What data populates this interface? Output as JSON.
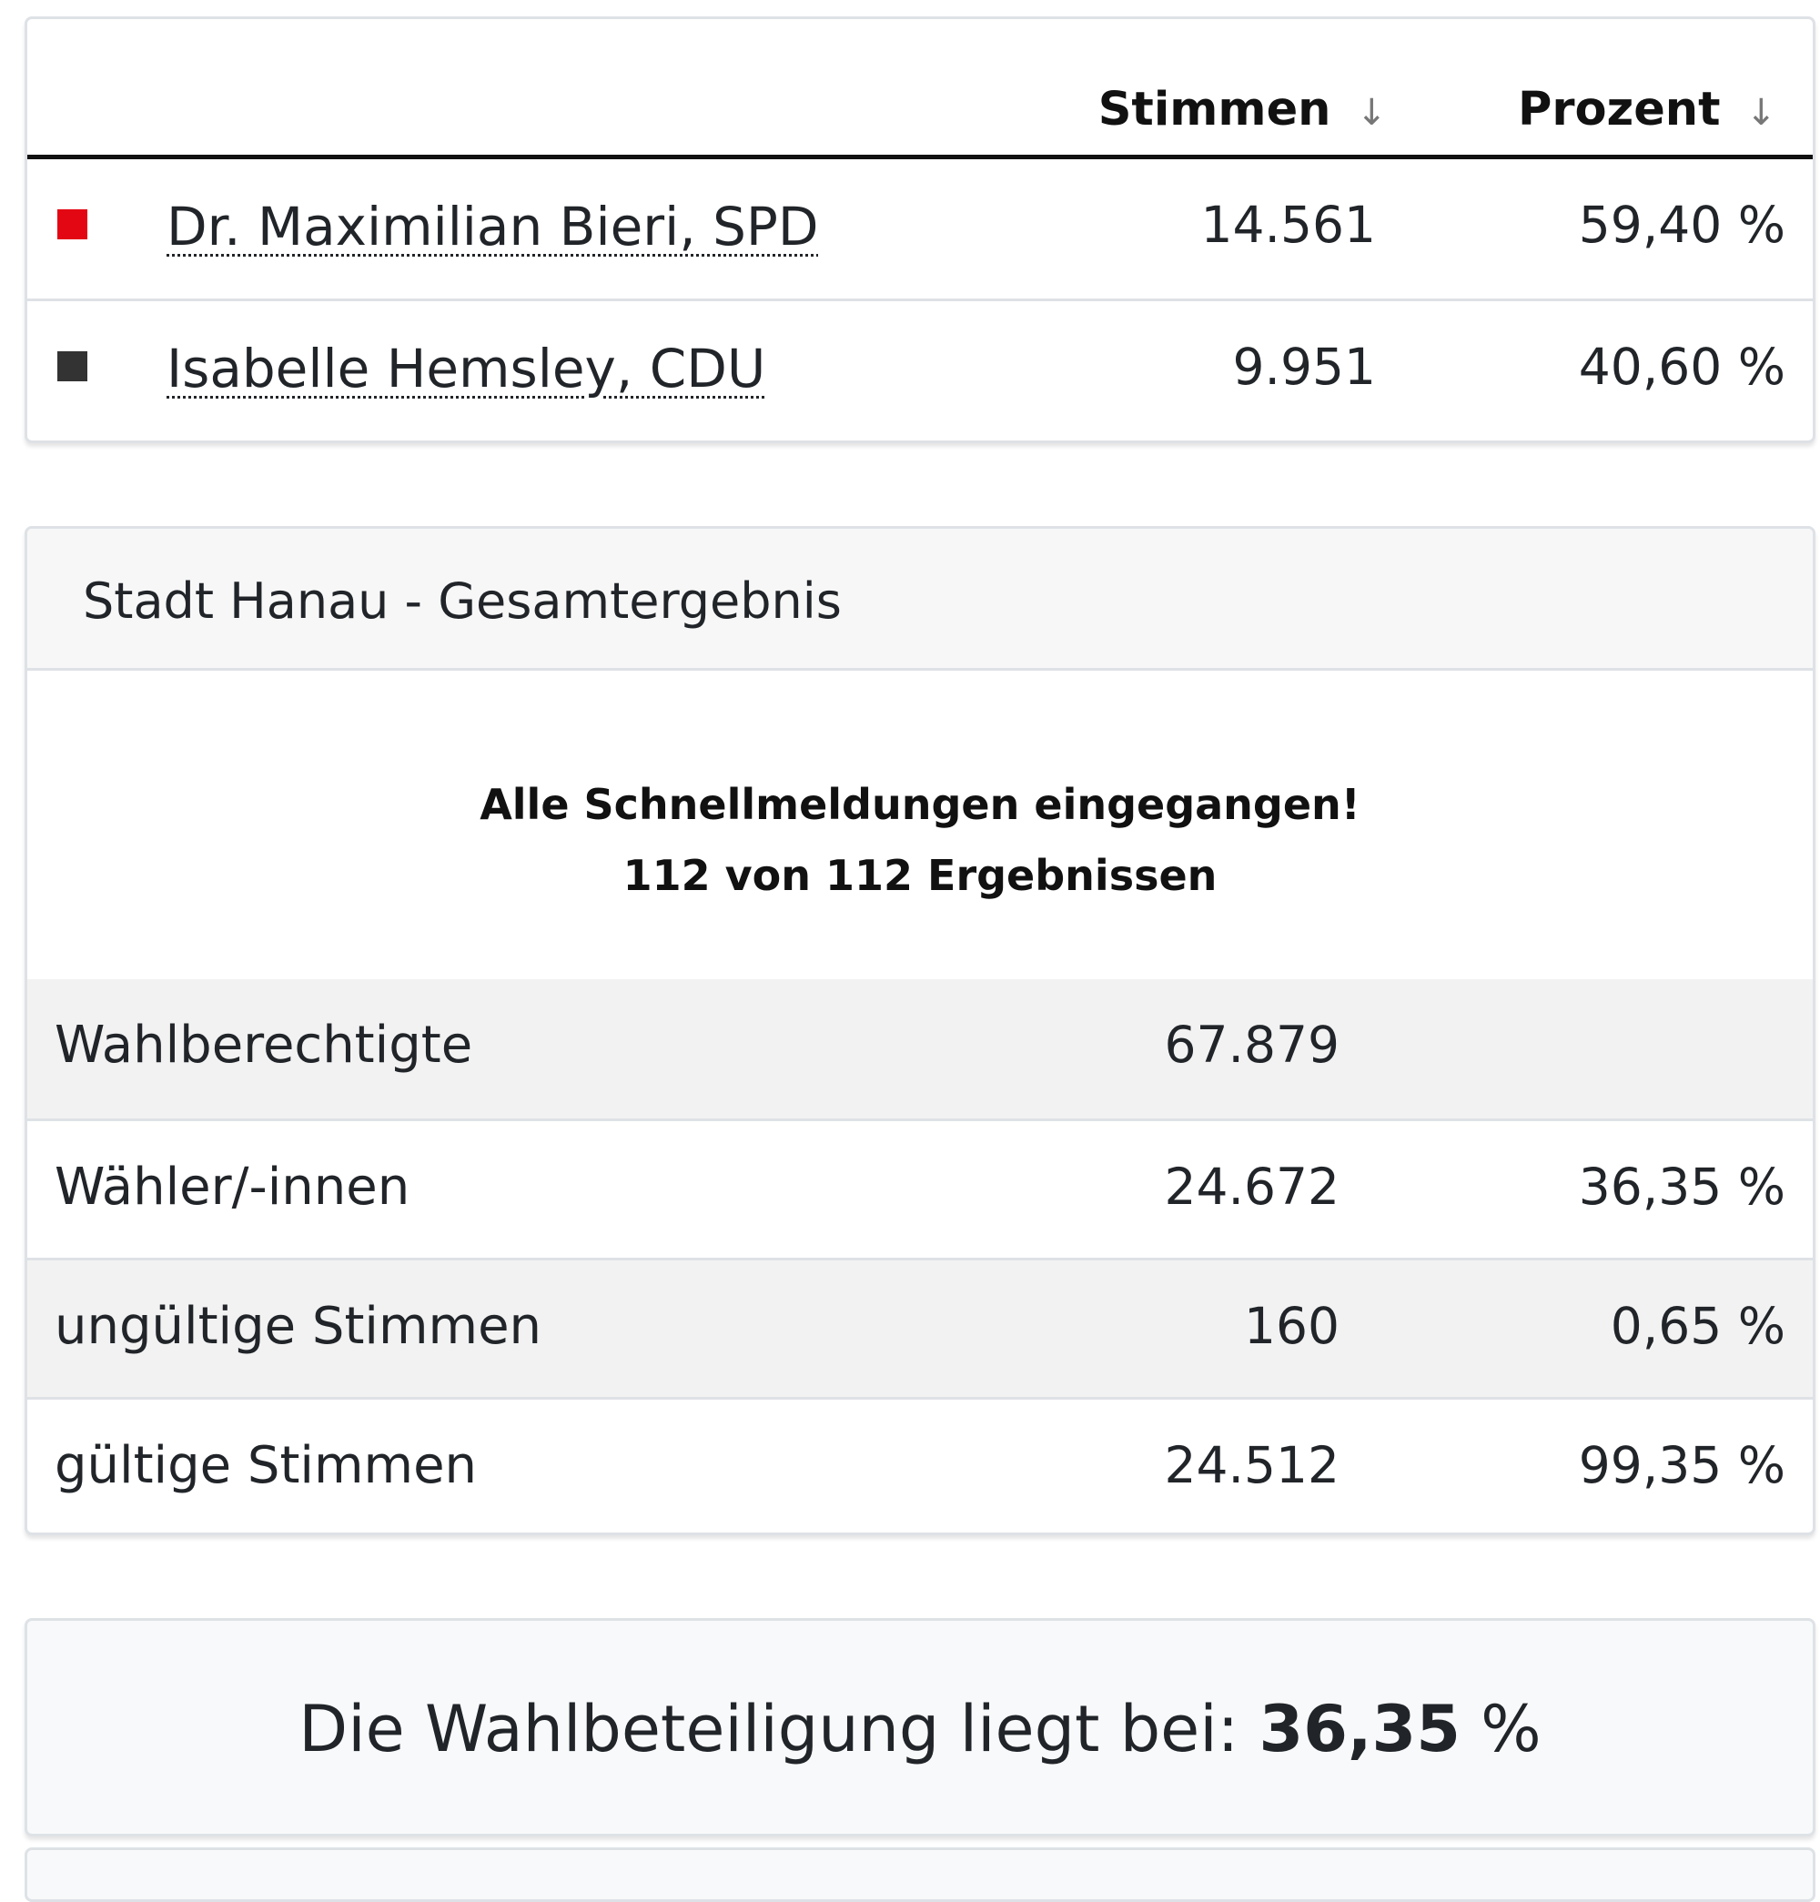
{
  "results": {
    "headers": {
      "votes": "Stimmen",
      "percent": "Prozent",
      "sort_glyph": "↓"
    },
    "candidates": [
      {
        "name": "Dr. Maximilian Bieri, SPD",
        "votes": "14.561",
        "percent": "59,40 %",
        "color": "#e30613"
      },
      {
        "name": "Isabelle Hemsley, CDU",
        "votes": "9.951",
        "percent": "40,60 %",
        "color": "#333333"
      }
    ]
  },
  "summary": {
    "title": "Stadt Hanau - Gesamtergebnis",
    "status_line1": "Alle Schnellmeldungen eingegangen!",
    "status_line2": "112 von 112 Ergebnissen",
    "rows": [
      {
        "label": "Wahlberechtigte",
        "value": "67.879",
        "percent": ""
      },
      {
        "label": "Wähler/-innen",
        "value": "24.672",
        "percent": "36,35 %"
      },
      {
        "label": "ungültige Stimmen",
        "value": "160",
        "percent": "0,65 %"
      },
      {
        "label": "gültige Stimmen",
        "value": "24.512",
        "percent": "99,35 %"
      }
    ]
  },
  "turnout": {
    "prefix": "Die Wahlbeteiligung liegt bei: ",
    "value": "36,35",
    "suffix": " %"
  }
}
